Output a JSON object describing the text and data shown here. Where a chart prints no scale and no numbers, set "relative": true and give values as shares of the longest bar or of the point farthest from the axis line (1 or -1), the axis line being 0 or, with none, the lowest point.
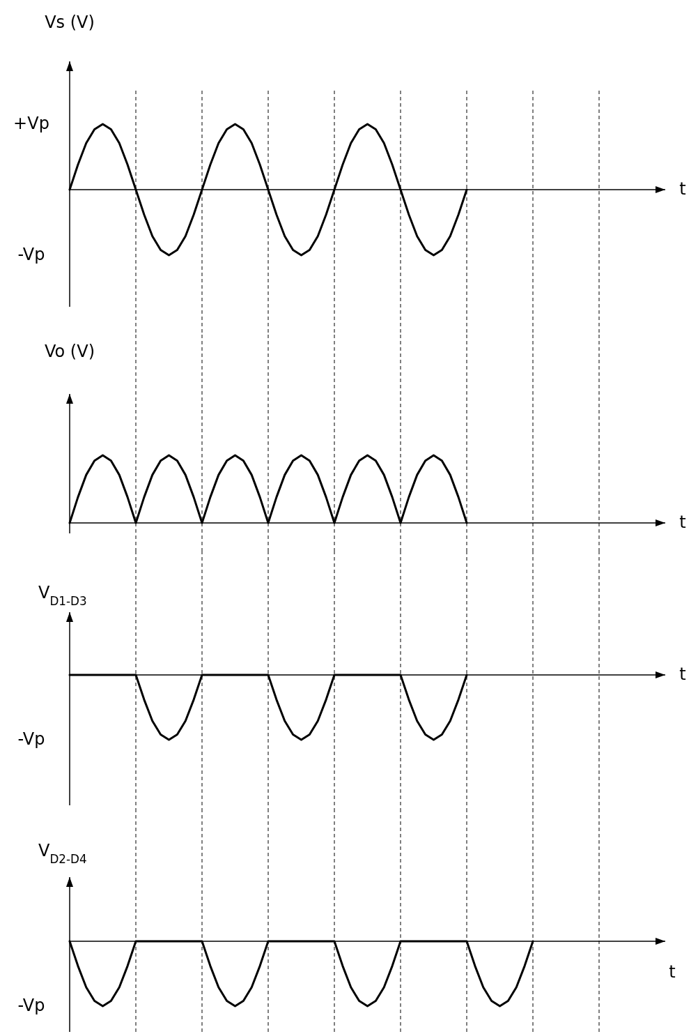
{
  "chart_data": [
    {
      "type": "line",
      "ylabel": "Vs (V)",
      "xlabel": "t",
      "relative": true,
      "marker": "none",
      "grid": "x",
      "annotations": [
        "+Vp",
        "-Vp"
      ],
      "categories": [
        null,
        null,
        null,
        null,
        null,
        null,
        null,
        null,
        null,
        null,
        null,
        null,
        null,
        null,
        null,
        null,
        null,
        null,
        null,
        null,
        null,
        null,
        null,
        null,
        null,
        null,
        null,
        null,
        null,
        null,
        null,
        null,
        null,
        null,
        null,
        null,
        null,
        null,
        null,
        null,
        null,
        null,
        null,
        null,
        null,
        null,
        null,
        null,
        null,
        null,
        null,
        null,
        null,
        null,
        null,
        null,
        null,
        null,
        null,
        null,
        null,
        null,
        null,
        null,
        null,
        null,
        null,
        null,
        null,
        null,
        null,
        null,
        null
      ],
      "series": [
        {
          "color": "#000000",
          "values": [
            0,
            0.38,
            0.71,
            0.92,
            1,
            0.92,
            0.71,
            0.38,
            0,
            -0.38,
            -0.71,
            -0.92,
            -1,
            -0.92,
            -0.71,
            -0.38,
            0,
            0.38,
            0.71,
            0.92,
            1,
            0.92,
            0.71,
            0.38,
            0,
            -0.38,
            -0.71,
            -0.92,
            -1,
            -0.92,
            -0.71,
            -0.38,
            0,
            0.38,
            0.71,
            0.92,
            1,
            0.92,
            0.71,
            0.38,
            0,
            -0.38,
            -0.71,
            -0.92,
            -1,
            -0.92,
            -0.71,
            -0.38,
            0,
            null,
            null,
            null,
            null,
            null,
            null,
            null,
            null,
            null,
            null,
            null,
            null,
            null,
            null,
            null,
            null,
            null,
            null,
            null,
            null,
            null,
            null,
            null,
            null
          ]
        }
      ]
    },
    {
      "type": "line",
      "ylabel": "Vo (V)",
      "xlabel": "t",
      "relative": true,
      "marker": "none",
      "grid": "x",
      "categories": [
        null,
        null,
        null,
        null,
        null,
        null,
        null,
        null,
        null,
        null,
        null,
        null,
        null,
        null,
        null,
        null,
        null,
        null,
        null,
        null,
        null,
        null,
        null,
        null,
        null,
        null,
        null,
        null,
        null,
        null,
        null,
        null,
        null,
        null,
        null,
        null,
        null,
        null,
        null,
        null,
        null,
        null,
        null,
        null,
        null,
        null,
        null,
        null,
        null,
        null,
        null,
        null,
        null,
        null,
        null,
        null,
        null,
        null,
        null,
        null,
        null,
        null,
        null,
        null,
        null,
        null,
        null,
        null,
        null,
        null,
        null,
        null,
        null
      ],
      "series": [
        {
          "color": "#000000",
          "values": [
            0,
            0.38,
            0.71,
            0.92,
            1,
            0.92,
            0.71,
            0.38,
            0,
            0.38,
            0.71,
            0.92,
            1,
            0.92,
            0.71,
            0.38,
            0,
            0.38,
            0.71,
            0.92,
            1,
            0.92,
            0.71,
            0.38,
            0,
            0.38,
            0.71,
            0.92,
            1,
            0.92,
            0.71,
            0.38,
            0,
            0.38,
            0.71,
            0.92,
            1,
            0.92,
            0.71,
            0.38,
            0,
            0.38,
            0.71,
            0.92,
            1,
            0.92,
            0.71,
            0.38,
            0,
            null,
            null,
            null,
            null,
            null,
            null,
            null,
            null,
            null,
            null,
            null,
            null,
            null,
            null,
            null,
            null,
            null,
            null,
            null,
            null,
            null,
            null,
            null,
            null
          ]
        }
      ]
    },
    {
      "type": "line",
      "ylabel": "V$_{D1-D3}$",
      "xlabel": "t",
      "relative": true,
      "marker": "none",
      "grid": "x",
      "annotations": [
        "-Vp"
      ],
      "categories": [
        null,
        null,
        null,
        null,
        null,
        null,
        null,
        null,
        null,
        null,
        null,
        null,
        null,
        null,
        null,
        null,
        null,
        null,
        null,
        null,
        null,
        null,
        null,
        null,
        null,
        null,
        null,
        null,
        null,
        null,
        null,
        null,
        null,
        null,
        null,
        null,
        null,
        null,
        null,
        null,
        null,
        null,
        null,
        null,
        null,
        null,
        null,
        null,
        null,
        null,
        null,
        null,
        null,
        null,
        null,
        null,
        null,
        null,
        null,
        null,
        null,
        null,
        null,
        null,
        null,
        null,
        null,
        null,
        null,
        null,
        null,
        null,
        null
      ],
      "series": [
        {
          "color": "#000000",
          "values": [
            0,
            0,
            0,
            0,
            0,
            0,
            0,
            0,
            0,
            -0.38,
            -0.71,
            -0.92,
            -1,
            -0.92,
            -0.71,
            -0.38,
            0,
            0,
            0,
            0,
            0,
            0,
            0,
            0,
            0,
            -0.38,
            -0.71,
            -0.92,
            -1,
            -0.92,
            -0.71,
            -0.38,
            0,
            0,
            0,
            0,
            0,
            0,
            0,
            0,
            0,
            -0.38,
            -0.71,
            -0.92,
            -1,
            -0.92,
            -0.71,
            -0.38,
            0,
            null,
            null,
            null,
            null,
            null,
            null,
            null,
            null,
            null,
            null,
            null,
            null,
            null,
            null,
            null,
            null,
            null,
            null,
            null,
            null,
            null,
            null,
            null,
            null
          ]
        }
      ]
    },
    {
      "type": "line",
      "ylabel": "V$_{D2-D4}$",
      "xlabel": "t",
      "relative": true,
      "marker": "none",
      "grid": "x",
      "annotations": [
        "-Vp"
      ],
      "categories": [
        null,
        null,
        null,
        null,
        null,
        null,
        null,
        null,
        null,
        null,
        null,
        null,
        null,
        null,
        null,
        null,
        null,
        null,
        null,
        null,
        null,
        null,
        null,
        null,
        null,
        null,
        null,
        null,
        null,
        null,
        null,
        null,
        null,
        null,
        null,
        null,
        null,
        null,
        null,
        null,
        null,
        null,
        null,
        null,
        null,
        null,
        null,
        null,
        null,
        null,
        null,
        null,
        null,
        null,
        null,
        null,
        null,
        null,
        null,
        null,
        null,
        null,
        null,
        null,
        null,
        null,
        null,
        null,
        null,
        null,
        null,
        null,
        null
      ],
      "series": [
        {
          "color": "#000000",
          "values": [
            0,
            -0.38,
            -0.71,
            -0.92,
            -1,
            -0.92,
            -0.71,
            -0.38,
            0,
            0,
            0,
            0,
            0,
            0,
            0,
            0,
            0,
            -0.38,
            -0.71,
            -0.92,
            -1,
            -0.92,
            -0.71,
            -0.38,
            0,
            0,
            0,
            0,
            0,
            0,
            0,
            0,
            0,
            -0.38,
            -0.71,
            -0.92,
            -1,
            -0.92,
            -0.71,
            -0.38,
            0,
            0,
            0,
            0,
            0,
            0,
            0,
            0,
            0,
            -0.38,
            -0.71,
            -0.92,
            -1,
            -0.92,
            -0.71,
            -0.38,
            0,
            null,
            null,
            null,
            null,
            null,
            null,
            null,
            null,
            null,
            null,
            null,
            null,
            null,
            null,
            null,
            null
          ]
        }
      ]
    }
  ]
}
